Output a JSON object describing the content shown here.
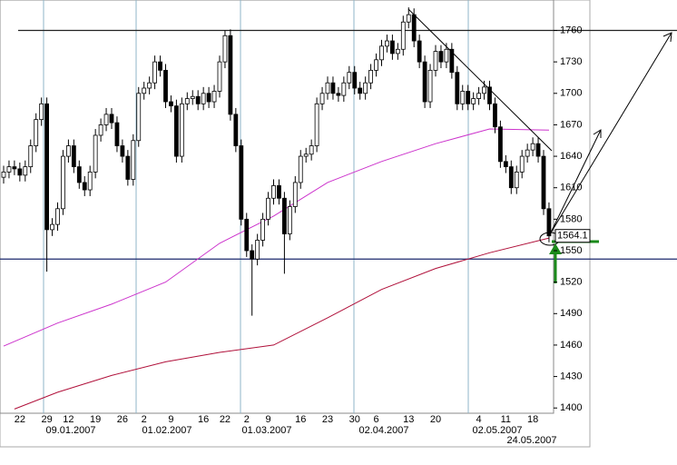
{
  "chart_data": {
    "type": "candlestick",
    "categories": [
      null,
      null,
      null,
      "22",
      null,
      null,
      null,
      null,
      "29",
      null,
      null,
      null,
      "12",
      null,
      null,
      null,
      null,
      "19",
      null,
      null,
      null,
      null,
      "26",
      null,
      null,
      null,
      "2",
      null,
      null,
      null,
      null,
      "9",
      null,
      null,
      null,
      null,
      null,
      "16",
      null,
      null,
      null,
      "22",
      null,
      null,
      null,
      "2",
      null,
      null,
      null,
      "9",
      null,
      null,
      null,
      null,
      null,
      "16",
      null,
      null,
      null,
      null,
      "23",
      null,
      null,
      null,
      null,
      "30",
      null,
      null,
      null,
      "6",
      null,
      null,
      null,
      null,
      null,
      "13",
      null,
      null,
      null,
      null,
      "20",
      null,
      null,
      null,
      null,
      null,
      null,
      null,
      "4",
      null,
      null,
      null,
      null,
      "11",
      null,
      null,
      null,
      null,
      "18",
      null,
      null,
      null
    ],
    "period_labels": [
      "09.01.2007",
      "01.02.2007",
      "01.03.2007",
      "02.04.2007",
      "02.05.2007",
      "24.05.2007"
    ],
    "open": [
      1620,
      1625,
      1630,
      1628,
      1622,
      1630,
      1650,
      1675,
      1690,
      1570,
      1575,
      1590,
      1640,
      1650,
      1630,
      1615,
      1608,
      1625,
      1660,
      1670,
      1680,
      1672,
      1650,
      1640,
      1618,
      1655,
      1700,
      1705,
      1710,
      1730,
      1722,
      1692,
      1688,
      1640,
      1690,
      1695,
      1697,
      1690,
      1700,
      1692,
      1702,
      1730,
      1755,
      1680,
      1650,
      1580,
      1550,
      1542,
      1560,
      1580,
      1600,
      1612,
      1600,
      1566,
      1592,
      1615,
      1640,
      1642,
      1650,
      1690,
      1700,
      1710,
      1700,
      1698,
      1710,
      1720,
      1705,
      1700,
      1710,
      1722,
      1732,
      1745,
      1750,
      1738,
      1742,
      1768,
      1775,
      1750,
      1730,
      1692,
      1722,
      1740,
      1730,
      1742,
      1720,
      1690,
      1702,
      1690,
      1695,
      1700,
      1706,
      1690,
      1668,
      1635,
      1630,
      1610,
      1625,
      1640,
      1646,
      1652,
      1640,
      1590
    ],
    "high": [
      1631,
      1636,
      1636,
      1634,
      1636,
      1656,
      1681,
      1696,
      1696,
      1581,
      1596,
      1646,
      1656,
      1656,
      1636,
      1621,
      1631,
      1666,
      1676,
      1686,
      1686,
      1678,
      1656,
      1646,
      1661,
      1706,
      1711,
      1716,
      1736,
      1736,
      1728,
      1698,
      1694,
      1696,
      1701,
      1703,
      1703,
      1706,
      1706,
      1708,
      1736,
      1760,
      1761,
      1686,
      1656,
      1586,
      1556,
      1566,
      1586,
      1606,
      1618,
      1618,
      1606,
      1598,
      1621,
      1646,
      1648,
      1656,
      1696,
      1706,
      1716,
      1716,
      1706,
      1716,
      1726,
      1726,
      1711,
      1716,
      1728,
      1738,
      1751,
      1756,
      1756,
      1748,
      1774,
      1782,
      1781,
      1756,
      1736,
      1728,
      1746,
      1746,
      1748,
      1748,
      1726,
      1708,
      1708,
      1701,
      1706,
      1712,
      1712,
      1696,
      1674,
      1641,
      1636,
      1631,
      1646,
      1652,
      1658,
      1658,
      1646,
      1596
    ],
    "low": [
      1614,
      1619,
      1622,
      1616,
      1616,
      1624,
      1644,
      1669,
      1530,
      1564,
      1569,
      1584,
      1634,
      1624,
      1609,
      1602,
      1602,
      1619,
      1654,
      1664,
      1666,
      1644,
      1634,
      1612,
      1612,
      1649,
      1694,
      1699,
      1704,
      1716,
      1686,
      1682,
      1634,
      1634,
      1684,
      1689,
      1684,
      1684,
      1686,
      1686,
      1696,
      1724,
      1674,
      1644,
      1574,
      1544,
      1488,
      1536,
      1554,
      1574,
      1594,
      1594,
      1528,
      1560,
      1586,
      1609,
      1634,
      1636,
      1644,
      1684,
      1694,
      1694,
      1692,
      1692,
      1704,
      1699,
      1694,
      1694,
      1704,
      1716,
      1726,
      1739,
      1732,
      1732,
      1736,
      1762,
      1744,
      1724,
      1686,
      1686,
      1716,
      1724,
      1724,
      1714,
      1684,
      1684,
      1684,
      1684,
      1689,
      1694,
      1684,
      1662,
      1629,
      1624,
      1604,
      1604,
      1619,
      1634,
      1640,
      1634,
      1584,
      1558
    ],
    "close": [
      1625,
      1630,
      1628,
      1622,
      1630,
      1650,
      1675,
      1690,
      1570,
      1575,
      1590,
      1640,
      1650,
      1630,
      1615,
      1608,
      1625,
      1660,
      1670,
      1680,
      1672,
      1650,
      1640,
      1618,
      1655,
      1700,
      1705,
      1710,
      1730,
      1722,
      1692,
      1688,
      1640,
      1690,
      1695,
      1697,
      1690,
      1700,
      1692,
      1702,
      1730,
      1755,
      1680,
      1650,
      1580,
      1550,
      1542,
      1560,
      1580,
      1600,
      1612,
      1600,
      1566,
      1592,
      1615,
      1640,
      1642,
      1650,
      1690,
      1700,
      1710,
      1700,
      1698,
      1710,
      1720,
      1705,
      1700,
      1710,
      1722,
      1732,
      1745,
      1750,
      1738,
      1742,
      1768,
      1775,
      1750,
      1730,
      1692,
      1722,
      1740,
      1730,
      1742,
      1720,
      1690,
      1702,
      1690,
      1695,
      1700,
      1706,
      1690,
      1668,
      1635,
      1630,
      1610,
      1625,
      1640,
      1646,
      1652,
      1640,
      1590,
      1564.1
    ],
    "series": [
      {
        "color": "#cc33cc",
        "x": [
          0,
          10,
          20,
          30,
          40,
          50,
          60,
          70,
          80,
          90,
          101
        ],
        "values": [
          1459,
          1481,
          1499,
          1520,
          1557,
          1583,
          1615,
          1635,
          1652,
          1666,
          1665
        ]
      },
      {
        "color": "#b0103a",
        "x": [
          2,
          10,
          20,
          30,
          40,
          50,
          60,
          70,
          80,
          90,
          101
        ],
        "values": [
          1399,
          1415,
          1431,
          1444,
          1453,
          1460,
          1486,
          1513,
          1533,
          1548,
          1562
        ]
      }
    ],
    "levels": [
      1760,
      1542
    ],
    "ylim": [
      1395,
      1789
    ],
    "yticks": [
      1400,
      1430,
      1460,
      1490,
      1520,
      1550,
      1580,
      1610,
      1640,
      1670,
      1700,
      1730,
      1760
    ]
  }
}
